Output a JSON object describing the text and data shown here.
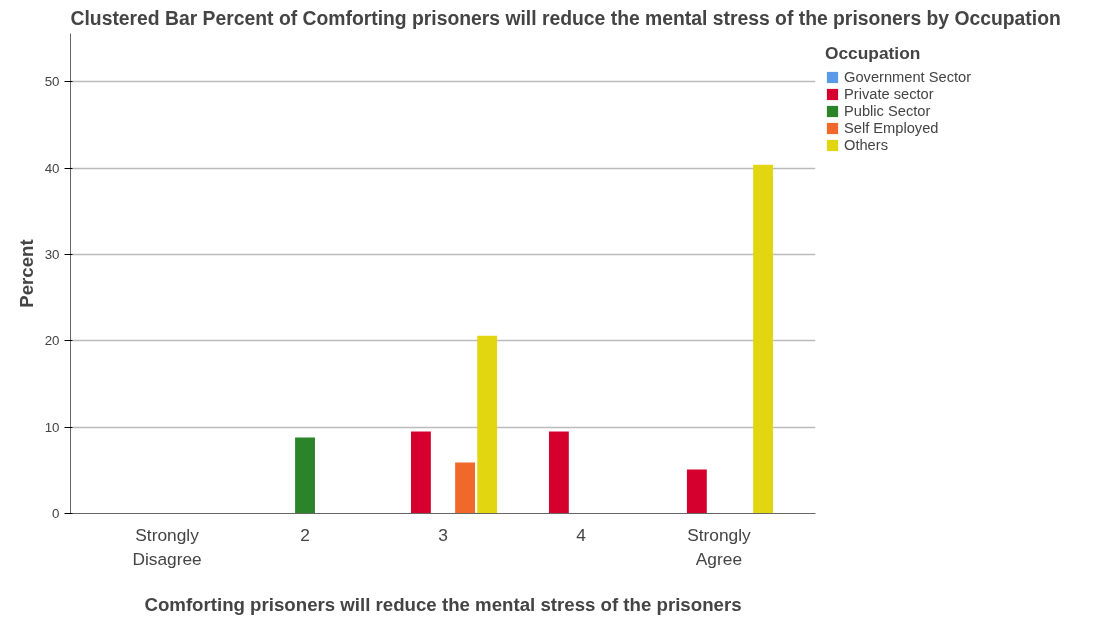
{
  "chart_data": {
    "type": "bar",
    "title": "Clustered Bar Percent of Comforting prisoners will reduce the mental stress of the prisoners  by Occupation",
    "xlabel": "Comforting prisoners will reduce the mental stress of the prisoners",
    "ylabel": "Percent",
    "legend_title": "Occupation",
    "categories": [
      "Strongly Disagree",
      "2",
      "3",
      "4",
      "Strongly Agree"
    ],
    "series": [
      {
        "name": "Government Sector",
        "color": "#5b9ae6",
        "values": [
          null,
          null,
          null,
          null,
          null
        ]
      },
      {
        "name": "Private sector",
        "color": "#d6002f",
        "values": [
          null,
          null,
          9.5,
          9.5,
          5.1
        ]
      },
      {
        "name": "Public Sector",
        "color": "#2b8428",
        "values": [
          null,
          8.8,
          null,
          null,
          null
        ]
      },
      {
        "name": "Self Employed",
        "color": "#f0692a",
        "values": [
          null,
          null,
          5.9,
          null,
          null
        ]
      },
      {
        "name": "Others",
        "color": "#e2d610",
        "values": [
          null,
          null,
          20.6,
          null,
          40.4
        ]
      }
    ],
    "ylim": [
      0,
      55.6
    ],
    "yticks": [
      0,
      10,
      20,
      30,
      40,
      50
    ],
    "grid": "y",
    "legend": "right"
  }
}
